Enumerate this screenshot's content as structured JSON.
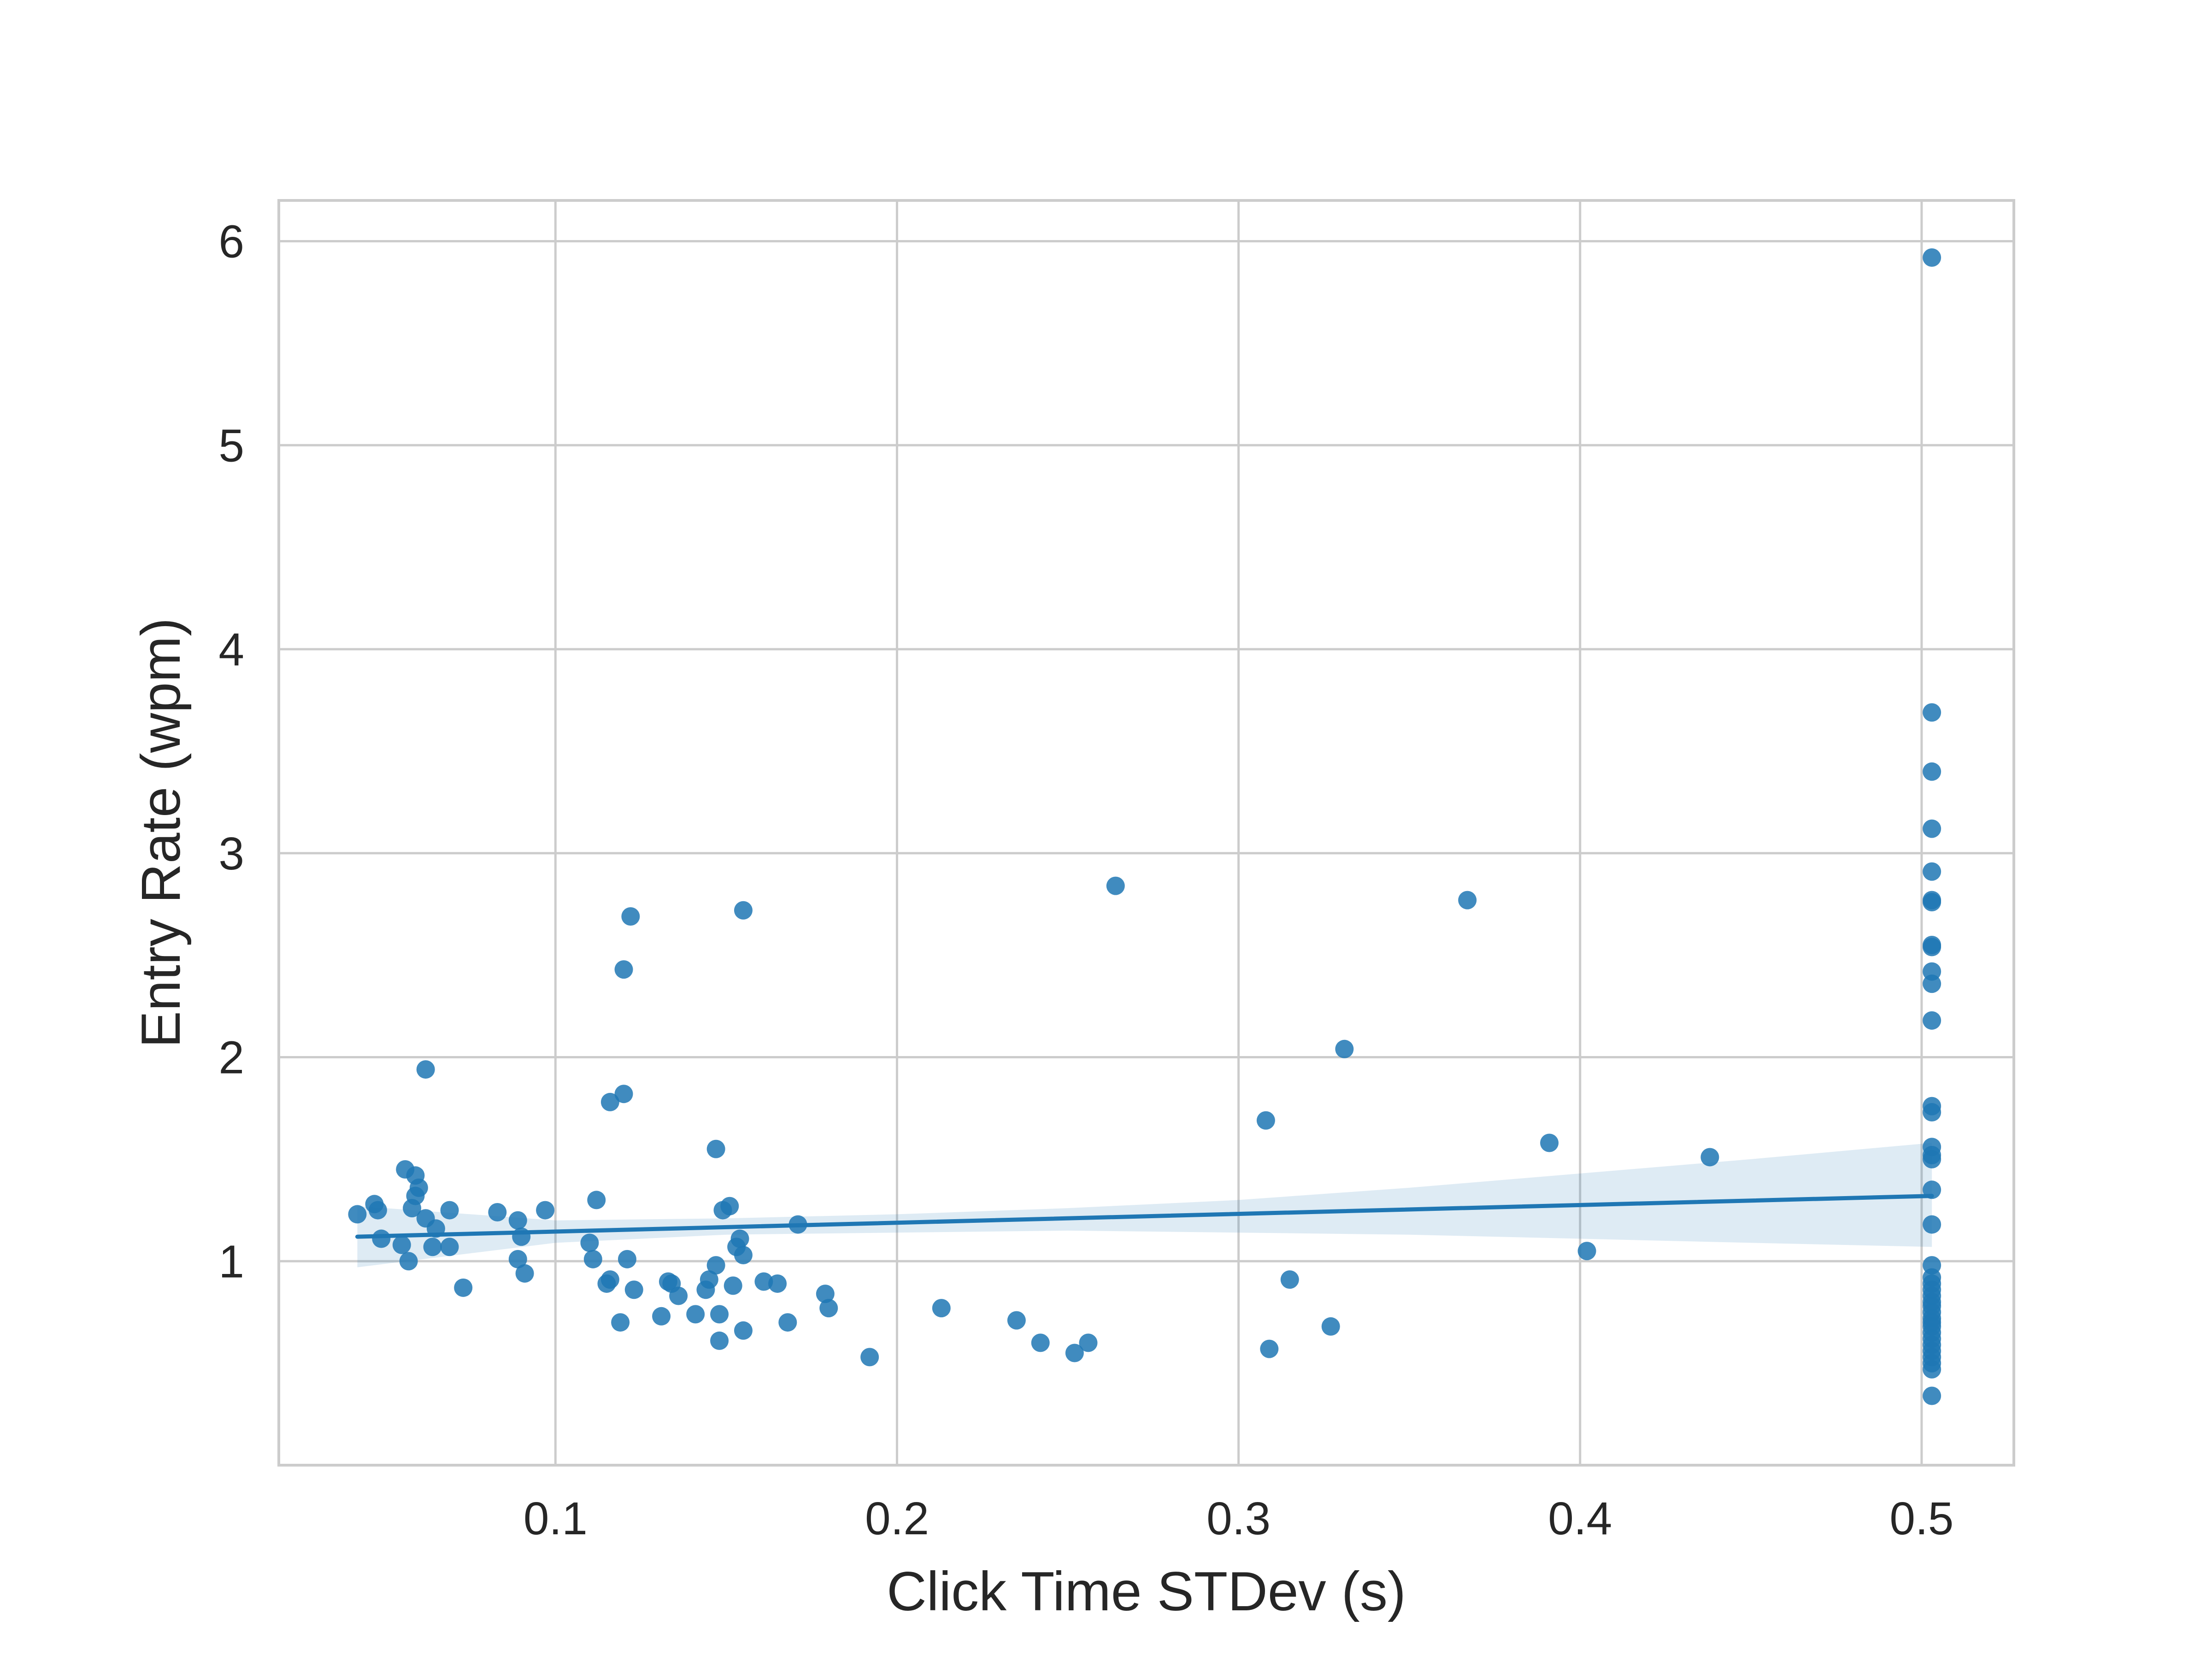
{
  "chart_data": {
    "type": "scatter",
    "title": "",
    "xlabel": "Click Time STDev (s)",
    "ylabel": "Entry Rate (wpm)",
    "xlim": [
      0.019,
      0.527
    ],
    "ylim": [
      0.0,
      6.2
    ],
    "xticks": [
      {
        "value": 0.1,
        "label": "0.1"
      },
      {
        "value": 0.2,
        "label": "0.2"
      },
      {
        "value": 0.3,
        "label": "0.3"
      },
      {
        "value": 0.4,
        "label": "0.4"
      },
      {
        "value": 0.5,
        "label": "0.5"
      }
    ],
    "yticks": [
      {
        "value": 1,
        "label": "1"
      },
      {
        "value": 2,
        "label": "2"
      },
      {
        "value": 3,
        "label": "3"
      },
      {
        "value": 4,
        "label": "4"
      },
      {
        "value": 5,
        "label": "5"
      },
      {
        "value": 6,
        "label": "6"
      }
    ],
    "grid": true,
    "legend": "none",
    "colors": {
      "points": "#1f77b4",
      "regression_line": "#1f77b4",
      "confidence_band": "#1f77b4",
      "grid": "#cccccc",
      "spines": "#cccccc",
      "text": "#262626"
    },
    "points": [
      [
        0.042,
        1.23
      ],
      [
        0.047,
        1.28
      ],
      [
        0.048,
        1.25
      ],
      [
        0.049,
        1.11
      ],
      [
        0.055,
        1.08
      ],
      [
        0.056,
        1.45
      ],
      [
        0.057,
        1.0
      ],
      [
        0.058,
        1.26
      ],
      [
        0.059,
        1.42
      ],
      [
        0.059,
        1.32
      ],
      [
        0.06,
        1.36
      ],
      [
        0.062,
        1.94
      ],
      [
        0.062,
        1.21
      ],
      [
        0.064,
        1.07
      ],
      [
        0.065,
        1.16
      ],
      [
        0.069,
        1.25
      ],
      [
        0.069,
        1.07
      ],
      [
        0.073,
        0.87
      ],
      [
        0.083,
        1.24
      ],
      [
        0.089,
        1.2
      ],
      [
        0.089,
        1.01
      ],
      [
        0.09,
        1.12
      ],
      [
        0.091,
        0.94
      ],
      [
        0.097,
        1.25
      ],
      [
        0.11,
        1.09
      ],
      [
        0.111,
        1.01
      ],
      [
        0.112,
        1.3
      ],
      [
        0.115,
        0.89
      ],
      [
        0.116,
        0.91
      ],
      [
        0.116,
        1.78
      ],
      [
        0.119,
        0.7
      ],
      [
        0.12,
        1.82
      ],
      [
        0.12,
        2.43
      ],
      [
        0.121,
        1.01
      ],
      [
        0.122,
        2.69
      ],
      [
        0.123,
        0.86
      ],
      [
        0.131,
        0.73
      ],
      [
        0.133,
        0.9
      ],
      [
        0.134,
        0.89
      ],
      [
        0.136,
        0.83
      ],
      [
        0.141,
        0.74
      ],
      [
        0.144,
        0.86
      ],
      [
        0.145,
        0.91
      ],
      [
        0.147,
        0.98
      ],
      [
        0.147,
        1.55
      ],
      [
        0.148,
        0.74
      ],
      [
        0.148,
        0.61
      ],
      [
        0.149,
        1.25
      ],
      [
        0.151,
        1.27
      ],
      [
        0.152,
        0.88
      ],
      [
        0.153,
        1.07
      ],
      [
        0.154,
        1.11
      ],
      [
        0.155,
        2.72
      ],
      [
        0.155,
        1.03
      ],
      [
        0.155,
        0.66
      ],
      [
        0.161,
        0.9
      ],
      [
        0.165,
        0.89
      ],
      [
        0.168,
        0.7
      ],
      [
        0.171,
        1.18
      ],
      [
        0.179,
        0.84
      ],
      [
        0.18,
        0.77
      ],
      [
        0.192,
        0.53
      ],
      [
        0.213,
        0.77
      ],
      [
        0.235,
        0.71
      ],
      [
        0.242,
        0.6
      ],
      [
        0.252,
        0.55
      ],
      [
        0.256,
        0.6
      ],
      [
        0.264,
        2.84
      ],
      [
        0.308,
        1.69
      ],
      [
        0.309,
        0.57
      ],
      [
        0.315,
        0.91
      ],
      [
        0.327,
        0.68
      ],
      [
        0.331,
        2.04
      ],
      [
        0.367,
        2.77
      ],
      [
        0.391,
        1.58
      ],
      [
        0.402,
        1.05
      ],
      [
        0.438,
        1.51
      ],
      [
        0.503,
        5.92
      ],
      [
        0.503,
        3.69
      ],
      [
        0.503,
        3.4
      ],
      [
        0.503,
        3.12
      ],
      [
        0.503,
        2.91
      ],
      [
        0.503,
        2.77
      ],
      [
        0.503,
        2.76
      ],
      [
        0.503,
        2.55
      ],
      [
        0.503,
        2.54
      ],
      [
        0.503,
        2.42
      ],
      [
        0.503,
        2.36
      ],
      [
        0.503,
        2.18
      ],
      [
        0.503,
        1.76
      ],
      [
        0.503,
        1.73
      ],
      [
        0.503,
        1.56
      ],
      [
        0.503,
        1.52
      ],
      [
        0.503,
        1.5
      ],
      [
        0.503,
        1.35
      ],
      [
        0.503,
        1.18
      ],
      [
        0.503,
        0.98
      ],
      [
        0.503,
        0.92
      ],
      [
        0.503,
        0.89
      ],
      [
        0.503,
        0.86
      ],
      [
        0.503,
        0.83
      ],
      [
        0.503,
        0.8
      ],
      [
        0.503,
        0.78
      ],
      [
        0.503,
        0.75
      ],
      [
        0.503,
        0.72
      ],
      [
        0.503,
        0.7
      ],
      [
        0.503,
        0.68
      ],
      [
        0.503,
        0.65
      ],
      [
        0.503,
        0.62
      ],
      [
        0.503,
        0.59
      ],
      [
        0.503,
        0.56
      ],
      [
        0.503,
        0.53
      ],
      [
        0.503,
        0.5
      ],
      [
        0.503,
        0.47
      ],
      [
        0.503,
        0.34
      ]
    ],
    "regression": {
      "x": [
        0.042,
        0.503
      ],
      "y": [
        1.12,
        1.32
      ]
    },
    "confidence_band": {
      "x": [
        0.042,
        0.1,
        0.15,
        0.2,
        0.25,
        0.3,
        0.35,
        0.4,
        0.45,
        0.503
      ],
      "lower": [
        0.97,
        1.09,
        1.13,
        1.14,
        1.15,
        1.14,
        1.13,
        1.11,
        1.09,
        1.07
      ],
      "upper": [
        1.27,
        1.2,
        1.21,
        1.23,
        1.26,
        1.3,
        1.36,
        1.43,
        1.5,
        1.58
      ]
    }
  }
}
